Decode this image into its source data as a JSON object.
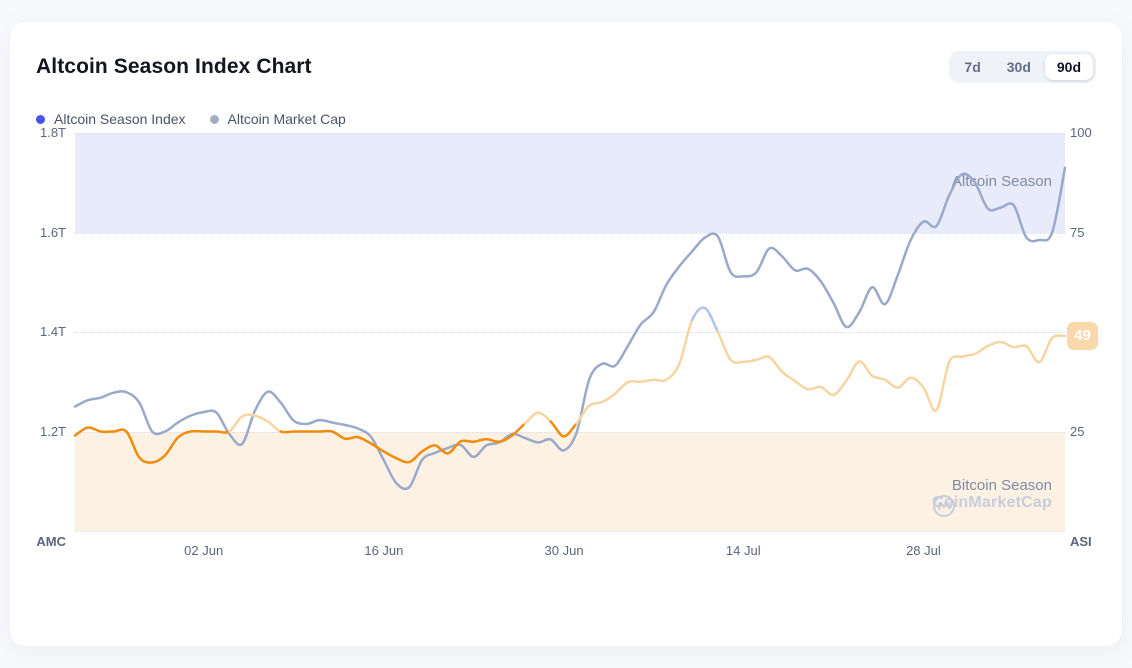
{
  "header": {
    "title": "Altcoin Season Index Chart",
    "ranges": [
      {
        "label": "7d",
        "active": false
      },
      {
        "label": "30d",
        "active": false
      },
      {
        "label": "90d",
        "active": true
      }
    ]
  },
  "legend": [
    {
      "label": "Altcoin Season Index",
      "color": "#4355E8"
    },
    {
      "label": "Altcoin Market Cap",
      "color": "#A5AFC1"
    }
  ],
  "zones": {
    "altcoin_label": "Altcoin Season",
    "bitcoin_label": "Bitcoin Season"
  },
  "watermark": {
    "text": "CoinMarketCap"
  },
  "colors": {
    "band_altcoin": "#E8EBFA",
    "band_bitcoin": "#FDF1E4",
    "grid_dots": "#D9DEE8",
    "amc_line": "#9AA9C9",
    "asi_bitcoin_zone": "#F18B0E",
    "asi_neutral": "#F8D4A0",
    "asi_altcoin_zone": "#AFC3F3",
    "badge_bg": "#F9D8AB",
    "badge_text": "#FFFFFF"
  },
  "chart_data": {
    "type": "line",
    "title": "Altcoin Season Index Chart",
    "left_axis": {
      "label": "AMC",
      "unit": "T",
      "range": [
        1.0,
        1.8
      ],
      "ticks": [
        1.8,
        1.6,
        1.4,
        1.2
      ],
      "tick_labels": [
        "1.8T",
        "1.6T",
        "1.4T",
        "1.2T"
      ]
    },
    "right_axis": {
      "label": "ASI",
      "range": [
        0,
        100
      ],
      "ticks": [
        100,
        75,
        25
      ],
      "tick_labels": [
        "100",
        "75",
        "25"
      ],
      "current_value": 49,
      "badge": "49"
    },
    "x_axis": {
      "ticks": [
        {
          "label": "02 Jun",
          "pos": 0.13
        },
        {
          "label": "16 Jun",
          "pos": 0.312
        },
        {
          "label": "30 Jun",
          "pos": 0.494
        },
        {
          "label": "14 Jul",
          "pos": 0.675
        },
        {
          "label": "28 Jul",
          "pos": 0.857
        }
      ]
    },
    "bands": [
      {
        "name": "Altcoin Season",
        "axis": "right",
        "range": [
          75,
          100
        ],
        "color": "#E8EBFA"
      },
      {
        "name": "Bitcoin Season",
        "axis": "right",
        "range": [
          0,
          25
        ],
        "color": "#FDF1E4"
      }
    ],
    "grid": "dotted-horizontal",
    "legend_position": "top-left",
    "series": [
      {
        "name": "Altcoin Market Cap",
        "axis": "left",
        "color": "#9AA9C9",
        "values": [
          1.25,
          1.263,
          1.268,
          1.278,
          1.279,
          1.258,
          1.2,
          1.2,
          1.218,
          1.232,
          1.239,
          1.238,
          1.195,
          1.175,
          1.242,
          1.28,
          1.258,
          1.222,
          1.215,
          1.223,
          1.218,
          1.213,
          1.206,
          1.19,
          1.143,
          1.096,
          1.088,
          1.143,
          1.157,
          1.167,
          1.173,
          1.149,
          1.172,
          1.178,
          1.195,
          1.187,
          1.178,
          1.184,
          1.162,
          1.197,
          1.305,
          1.336,
          1.332,
          1.372,
          1.415,
          1.44,
          1.495,
          1.532,
          1.562,
          1.59,
          1.592,
          1.52,
          1.512,
          1.52,
          1.568,
          1.552,
          1.524,
          1.527,
          1.502,
          1.458,
          1.41,
          1.44,
          1.49,
          1.456,
          1.515,
          1.585,
          1.622,
          1.613,
          1.675,
          1.717,
          1.7,
          1.648,
          1.65,
          1.655,
          1.59,
          1.585,
          1.6,
          1.73
        ]
      },
      {
        "name": "Altcoin Season Index",
        "axis": "right",
        "zone_colors": {
          "bitcoin": "#F18B0E",
          "neutral": "#F8D4A0",
          "altcoin": "#AFC3F3"
        },
        "zone_thresholds": {
          "bitcoin_below": 26,
          "altcoin_at_or_above": 50
        },
        "current_value": 49,
        "values": [
          24,
          26,
          25,
          25,
          25,
          18.5,
          17.2,
          19,
          23.5,
          25,
          25,
          25,
          25,
          28.8,
          29,
          27.5,
          25,
          25,
          25,
          25,
          25,
          23.2,
          23.6,
          22,
          20,
          18.3,
          17.3,
          20,
          21.5,
          19.5,
          22.5,
          22.4,
          23.1,
          22.4,
          24,
          27,
          29.7,
          27.5,
          23.8,
          27,
          31.5,
          32.4,
          34.5,
          37.4,
          37.5,
          38,
          38,
          42,
          53,
          56,
          50,
          43,
          42.5,
          43,
          43.7,
          40,
          37.7,
          35.6,
          36.2,
          34.2,
          37.8,
          42.6,
          39,
          38,
          36,
          38.5,
          36,
          30.3,
          42.5,
          43.8,
          44.5,
          46.5,
          47.5,
          46.2,
          46.4,
          42.4,
          48.5,
          49
        ]
      }
    ]
  }
}
